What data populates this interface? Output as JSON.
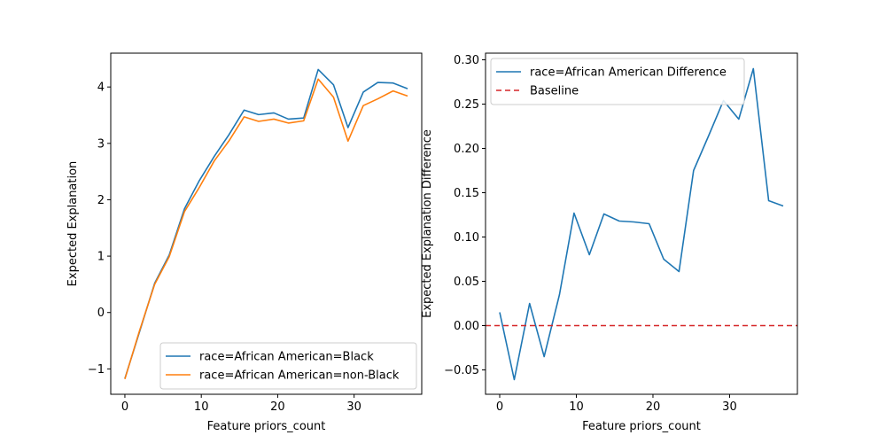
{
  "chart_data": [
    {
      "type": "line",
      "title": "",
      "xlabel": "Feature priors_count",
      "ylabel": "Expected Explanation",
      "xlim": [
        -1.85,
        38.85
      ],
      "ylim": [
        -1.45,
        4.6
      ],
      "xticks": [
        0,
        10,
        20,
        30
      ],
      "yticks": [
        -1,
        0,
        1,
        2,
        3,
        4
      ],
      "legend_position": "lower-right",
      "series": [
        {
          "name": "race=African American=Black",
          "color": "#1f77b4",
          "dash": "",
          "x": [
            0,
            1.9,
            3.9,
            5.8,
            7.8,
            9.7,
            11.7,
            13.6,
            15.6,
            17.5,
            19.5,
            21.4,
            23.4,
            25.3,
            27.3,
            29.2,
            31.2,
            33.1,
            35.1,
            37
          ],
          "y": [
            -1.17,
            -0.35,
            0.52,
            1.02,
            1.84,
            2.33,
            2.77,
            3.15,
            3.59,
            3.51,
            3.54,
            3.43,
            3.45,
            4.31,
            4.04,
            3.28,
            3.91,
            4.08,
            4.07,
            3.97
          ]
        },
        {
          "name": "race=African American=non-Black",
          "color": "#ff7f0e",
          "dash": "",
          "x": [
            0,
            1.9,
            3.9,
            5.8,
            7.8,
            9.7,
            11.7,
            13.6,
            15.6,
            17.5,
            19.5,
            21.4,
            23.4,
            25.3,
            27.3,
            29.2,
            31.2,
            33.1,
            35.1,
            37
          ],
          "y": [
            -1.18,
            -0.33,
            0.5,
            0.99,
            1.79,
            2.21,
            2.69,
            3.04,
            3.47,
            3.39,
            3.43,
            3.36,
            3.4,
            4.14,
            3.82,
            3.04,
            3.67,
            3.79,
            3.93,
            3.84
          ]
        }
      ]
    },
    {
      "type": "line",
      "title": "",
      "xlabel": "Feature priors_count",
      "ylabel": "Expected Explanation Difference",
      "xlim": [
        -1.85,
        38.85
      ],
      "ylim": [
        -0.0775,
        0.3075
      ],
      "xticks": [
        0,
        10,
        20,
        30
      ],
      "yticks": [
        -0.05,
        0.0,
        0.05,
        0.1,
        0.15,
        0.2,
        0.25,
        0.3
      ],
      "ytick_labels": [
        "−0.05",
        "0.00",
        "0.05",
        "0.10",
        "0.15",
        "0.20",
        "0.25",
        "0.30"
      ],
      "legend_position": "upper-left",
      "series": [
        {
          "name": "race=African American Difference",
          "color": "#1f77b4",
          "dash": "",
          "x": [
            0,
            1.9,
            3.9,
            5.8,
            7.8,
            9.7,
            11.7,
            13.6,
            15.6,
            17.5,
            19.5,
            21.4,
            23.4,
            25.3,
            27.3,
            29.2,
            31.2,
            33.1,
            35.1,
            37
          ],
          "y": [
            0.015,
            -0.061,
            0.025,
            -0.035,
            0.035,
            0.127,
            0.08,
            0.126,
            0.118,
            0.117,
            0.115,
            0.075,
            0.061,
            0.175,
            0.215,
            0.254,
            0.233,
            0.29,
            0.141,
            0.135
          ]
        },
        {
          "name": "Baseline",
          "color": "#d62728",
          "dash": "6,4",
          "hline": 0.0
        }
      ]
    }
  ]
}
